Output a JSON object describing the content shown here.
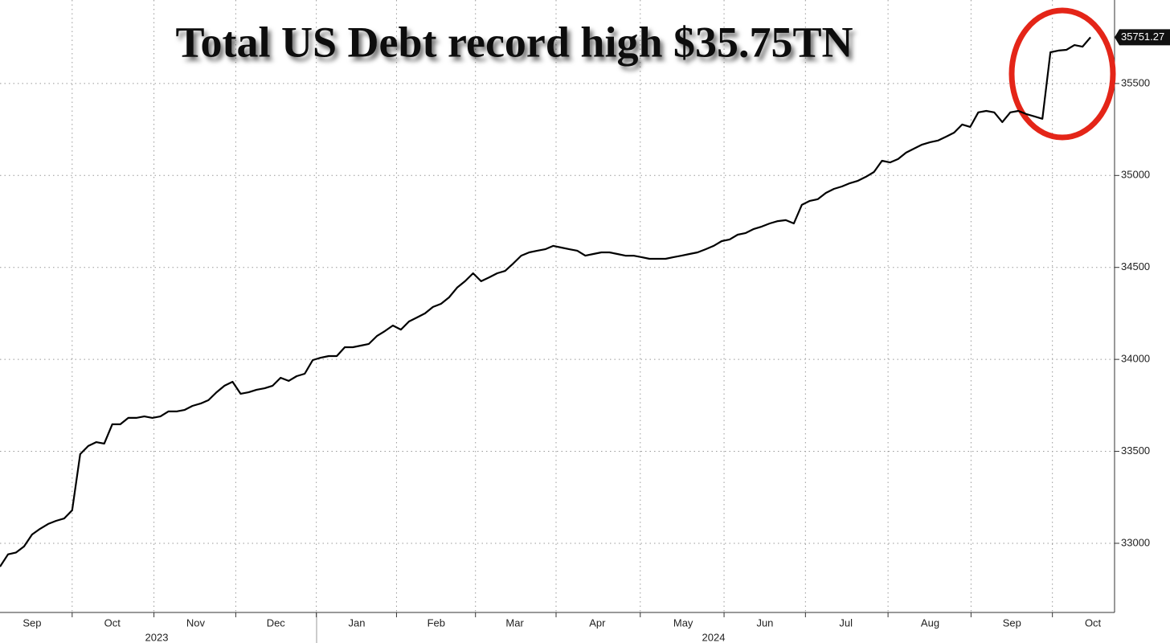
{
  "chart_data": {
    "type": "line",
    "title": "Total US Debt record high $35.75TN",
    "series": [
      {
        "color": "#000000",
        "values": [
          32873,
          32940,
          32950,
          32983,
          33048,
          33079,
          33105,
          33122,
          33135,
          33180,
          33485,
          33529,
          33550,
          33542,
          33647,
          33647,
          33682,
          33682,
          33690,
          33682,
          33690,
          33717,
          33717,
          33725,
          33747,
          33760,
          33778,
          33821,
          33857,
          33878,
          33813,
          33821,
          33835,
          33843,
          33857,
          33900,
          33883,
          33909,
          33922,
          33996,
          34009,
          34018,
          34018,
          34066,
          34066,
          34075,
          34084,
          34127,
          34154,
          34184,
          34162,
          34206,
          34228,
          34250,
          34285,
          34302,
          34337,
          34390,
          34425,
          34468,
          34425,
          34446,
          34468,
          34481,
          34521,
          34564,
          34582,
          34591,
          34599,
          34617,
          34608,
          34599,
          34591,
          34564,
          34573,
          34582,
          34582,
          34573,
          34564,
          34564,
          34556,
          34547,
          34547,
          34547,
          34556,
          34564,
          34573,
          34582,
          34599,
          34617,
          34643,
          34652,
          34678,
          34687,
          34709,
          34722,
          34739,
          34752,
          34757,
          34739,
          34840,
          34862,
          34871,
          34905,
          34927,
          34940,
          34958,
          34971,
          34993,
          35019,
          35080,
          35071,
          35089,
          35124,
          35146,
          35168,
          35181,
          35190,
          35211,
          35233,
          35277,
          35264,
          35343,
          35351,
          35343,
          35290,
          35343,
          35351,
          35334,
          35321,
          35308,
          35670,
          35679,
          35683,
          35709,
          35700,
          35751.27
        ]
      }
    ],
    "xlim": [
      0,
      139
    ],
    "xticks": [
      {
        "value": 4,
        "label": "Sep"
      },
      {
        "value": 14,
        "label": "Oct"
      },
      {
        "value": 24.4,
        "label": "Nov"
      },
      {
        "value": 34.4,
        "label": "Dec"
      },
      {
        "value": 44.5,
        "label": "Jan"
      },
      {
        "value": 54.4,
        "label": "Feb"
      },
      {
        "value": 64.2,
        "label": "Mar"
      },
      {
        "value": 74.5,
        "label": "Apr"
      },
      {
        "value": 85.2,
        "label": "May"
      },
      {
        "value": 95.4,
        "label": "Jun"
      },
      {
        "value": 105.5,
        "label": "Jul"
      },
      {
        "value": 116,
        "label": "Aug"
      },
      {
        "value": 126.2,
        "label": "Sep"
      },
      {
        "value": 136.3,
        "label": "Oct"
      }
    ],
    "year_labels": [
      "2023",
      "2024"
    ],
    "ylim": [
      32624,
      35954
    ],
    "yticks": [
      33000,
      33500,
      34000,
      34500,
      35000,
      35500
    ],
    "grid": true
  }
}
